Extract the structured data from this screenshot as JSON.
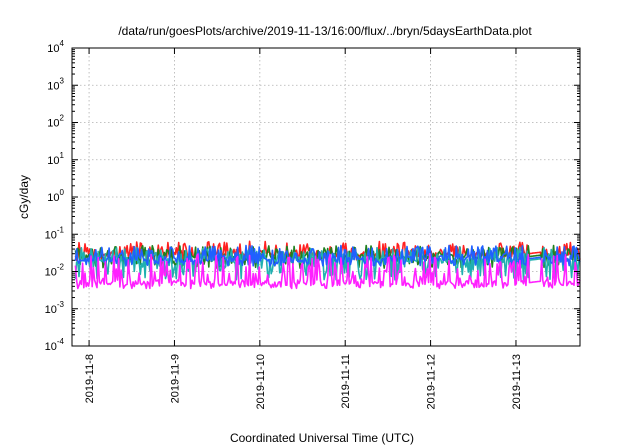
{
  "chart_data": {
    "type": "line",
    "title": "/data/run/goesPlots/archive/2019-11-13/16:00/flux/../bryn/5daysEarthData.plot",
    "xlabel": "Coordinated Universal Time (UTC)",
    "ylabel": "cGy/day",
    "y_scale": "log",
    "ylim": [
      0.0001,
      10000
    ],
    "xlim": [
      "2019-11-07T19:12",
      "2019-11-13T18:00"
    ],
    "x_ticks": [
      "2019-11-8",
      "2019-11-9",
      "2019-11-10",
      "2019-11-11",
      "2019-11-12",
      "2019-11-13"
    ],
    "y_ticks": [
      {
        "base": "10",
        "exp": "-4",
        "value": 0.0001
      },
      {
        "base": "10",
        "exp": "-3",
        "value": 0.001
      },
      {
        "base": "10",
        "exp": "-2",
        "value": 0.01
      },
      {
        "base": "10",
        "exp": "-1",
        "value": 0.1
      },
      {
        "base": "10",
        "exp": "0",
        "value": 1
      },
      {
        "base": "10",
        "exp": "1",
        "value": 10
      },
      {
        "base": "10",
        "exp": "2",
        "value": 100
      },
      {
        "base": "10",
        "exp": "3",
        "value": 1000
      },
      {
        "base": "10",
        "exp": "4",
        "value": 10000
      }
    ],
    "grid": true,
    "legend": "none",
    "gap": {
      "start": "2019-11-13T03:30",
      "end": "2019-11-13T07:00"
    },
    "series": [
      {
        "color": "#ff2020",
        "baseline": 0.03,
        "low": 0.02,
        "high": 0.065
      },
      {
        "color": "#208020",
        "baseline": 0.025,
        "low": 0.012,
        "high": 0.05
      },
      {
        "color": "#20b0b0",
        "baseline": 0.02,
        "low": 0.006,
        "high": 0.045
      },
      {
        "color": "#2060ff",
        "baseline": 0.022,
        "low": 0.014,
        "high": 0.05
      },
      {
        "color": "#ff20ff",
        "baseline": 0.005,
        "low": 0.0035,
        "high": 0.03
      }
    ]
  }
}
